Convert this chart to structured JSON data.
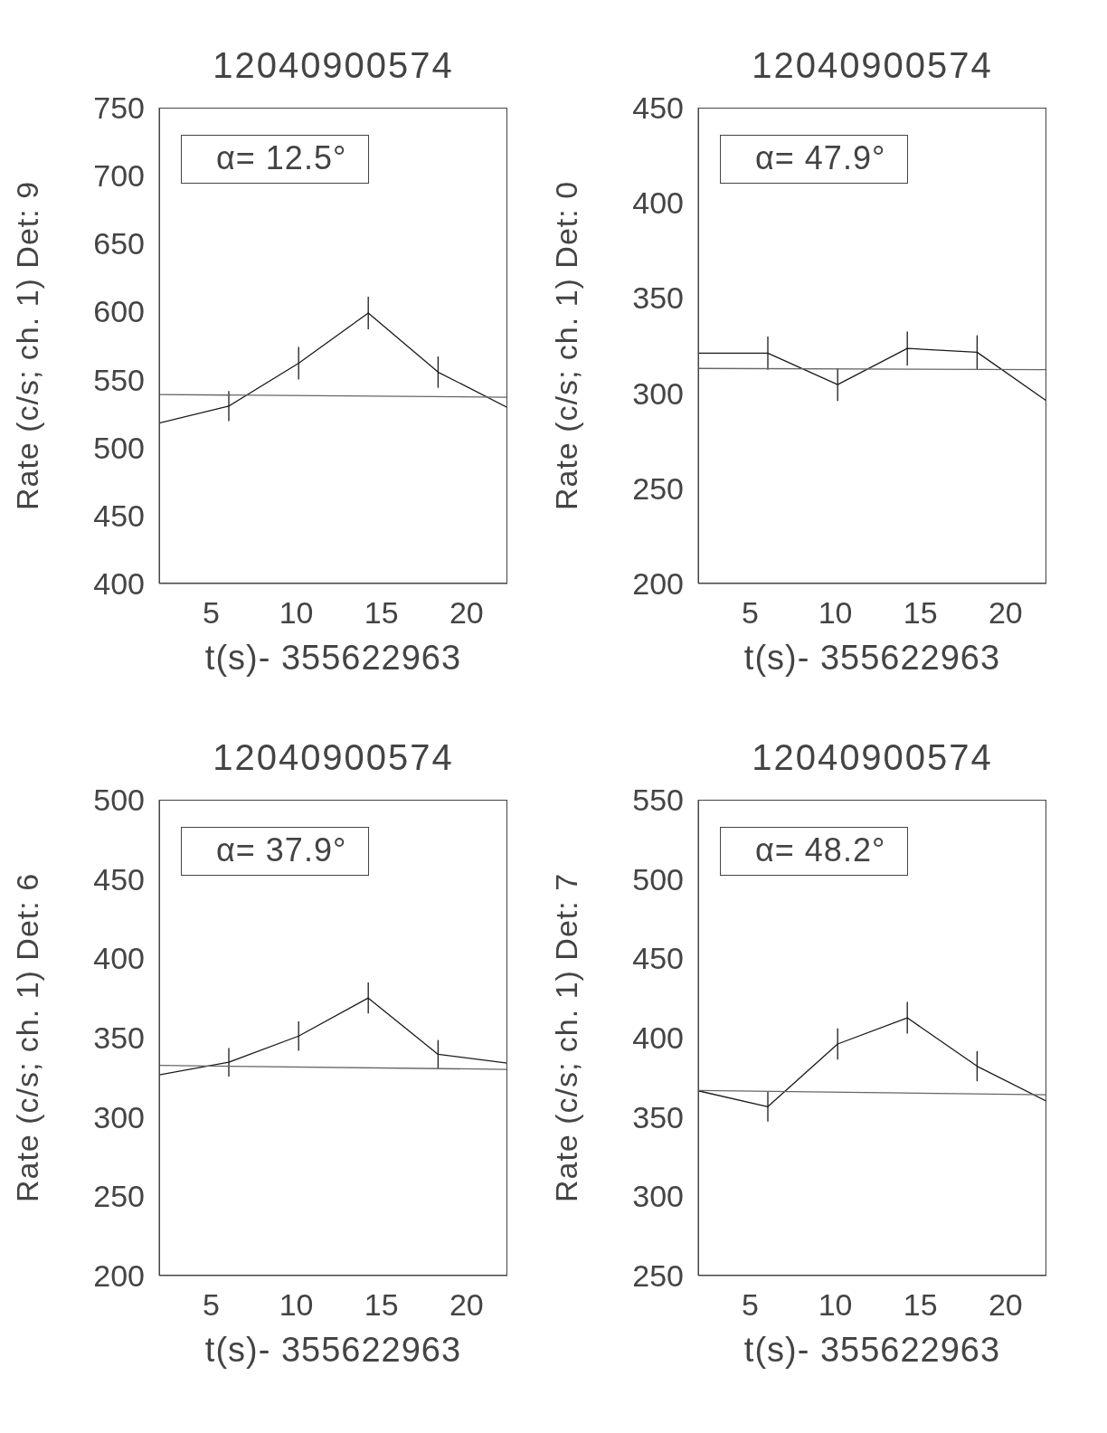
{
  "chart_data": [
    {
      "type": "line",
      "title": "12040900574",
      "xlabel": "t(s)- 355622963",
      "ylabel": "Rate (c/s; ch. 1) Det: 9",
      "annotations": [
        "α= 12.5°"
      ],
      "marker": "none",
      "xlim": [
        1.95,
        22.4
      ],
      "xticks": [
        5,
        10,
        15,
        20
      ],
      "ylim": [
        400,
        750
      ],
      "yticks": [
        400,
        450,
        500,
        550,
        600,
        650,
        700,
        750
      ],
      "series": [
        {
          "type": "line",
          "color": "#1a1a1a",
          "x": [
            1.95,
            6.04,
            10.14,
            14.23,
            18.33,
            22.4
          ],
          "values": [
            518,
            530.5,
            562,
            599,
            555.5,
            529.5
          ],
          "errors": [
            null,
            11,
            12,
            12,
            11.5,
            null
          ]
        },
        {
          "type": "line",
          "color": "#666666",
          "x": [
            1.95,
            22.4
          ],
          "values": [
            539,
            537
          ]
        }
      ]
    },
    {
      "type": "line",
      "title": "12040900574",
      "xlabel": "t(s)- 355622963",
      "ylabel": "Rate (c/s; ch. 1) Det: 0",
      "annotations": [
        "α= 47.9°"
      ],
      "marker": "none",
      "xlim": [
        1.95,
        22.4
      ],
      "xticks": [
        5,
        10,
        15,
        20
      ],
      "ylim": [
        200,
        450
      ],
      "yticks": [
        200,
        250,
        300,
        350,
        400,
        450
      ],
      "series": [
        {
          "type": "line",
          "color": "#1a1a1a",
          "x": [
            1.95,
            6.04,
            10.14,
            14.23,
            18.33,
            22.4
          ],
          "values": [
            321,
            321,
            304.5,
            323.5,
            321.5,
            296
          ],
          "errors": [
            null,
            8.7,
            8.6,
            8.9,
            8.9,
            null
          ]
        },
        {
          "type": "line",
          "color": "#666666",
          "x": [
            1.95,
            22.4
          ],
          "values": [
            313,
            312.3
          ]
        }
      ]
    },
    {
      "type": "line",
      "title": "12040900574",
      "xlabel": "t(s)- 355622963",
      "ylabel": "Rate (c/s; ch. 1) Det: 6",
      "annotations": [
        "α= 37.9°"
      ],
      "marker": "none",
      "xlim": [
        1.95,
        22.4
      ],
      "xticks": [
        5,
        10,
        15,
        20
      ],
      "ylim": [
        200,
        500
      ],
      "yticks": [
        200,
        250,
        300,
        350,
        400,
        450,
        500
      ],
      "series": [
        {
          "type": "line",
          "color": "#1a1a1a",
          "x": [
            1.95,
            6.04,
            10.14,
            14.23,
            18.33,
            22.4
          ],
          "values": [
            326.5,
            334.5,
            351,
            375,
            339.5,
            334
          ],
          "errors": [
            null,
            9,
            9.3,
            9.8,
            9,
            null
          ]
        },
        {
          "type": "line",
          "color": "#666666",
          "x": [
            1.95,
            22.4
          ],
          "values": [
            332.5,
            330
          ]
        }
      ]
    },
    {
      "type": "line",
      "title": "12040900574",
      "xlabel": "t(s)- 355622963",
      "ylabel": "Rate (c/s; ch. 1) Det: 7",
      "annotations": [
        "α= 48.2°"
      ],
      "marker": "none",
      "xlim": [
        1.95,
        22.4
      ],
      "xticks": [
        5,
        10,
        15,
        20
      ],
      "ylim": [
        250,
        550
      ],
      "yticks": [
        250,
        300,
        350,
        400,
        450,
        500,
        550
      ],
      "series": [
        {
          "type": "line",
          "color": "#1a1a1a",
          "x": [
            1.95,
            6.04,
            10.14,
            14.23,
            18.33,
            22.4
          ],
          "values": [
            366.5,
            356.5,
            396,
            412.5,
            382,
            360
          ],
          "errors": [
            null,
            9.4,
            9.9,
            10,
            9.5,
            null
          ]
        },
        {
          "type": "line",
          "color": "#666666",
          "x": [
            1.95,
            22.4
          ],
          "values": [
            366.7,
            364
          ]
        }
      ]
    }
  ]
}
